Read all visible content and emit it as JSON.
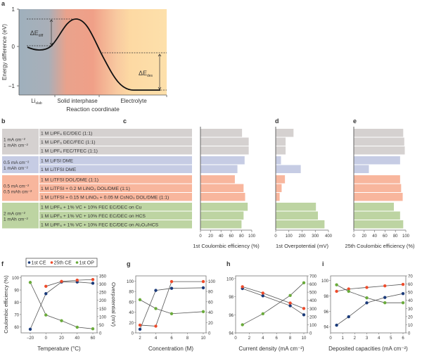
{
  "panel_labels": {
    "a": "a",
    "b": "b",
    "c": "c",
    "d": "d",
    "e": "e",
    "f": "f",
    "g": "g",
    "h": "h",
    "i": "i"
  },
  "colors": {
    "gray": "#d5d1d0",
    "blue": "#c6cce4",
    "orange": "#f8b69d",
    "green": "#bdd4a2",
    "ce1": "#1b3b7a",
    "ce25": "#ee4b2b",
    "op": "#6aab3b"
  },
  "chart_data": [
    {
      "id": "a",
      "type": "line",
      "ylabel": "Energy difference (eV)",
      "xlabel": "Reaction coordinate",
      "yticks": [
        "1",
        "0",
        "−1"
      ],
      "regions": [
        "Li",
        "Solid interphase",
        "Electrolyte"
      ],
      "region_sub": "slab",
      "annotations": [
        {
          "main": "ΔE",
          "sub": "diff"
        },
        {
          "main": "ΔE",
          "sub": "des"
        }
      ]
    },
    {
      "id": "b",
      "type": "table",
      "groups": [
        {
          "cond": [
            "1 mA cm⁻²",
            "1 mAh cm⁻²"
          ],
          "color": "gray",
          "rows": [
            "1 M LiPF₆ EC/DEC (1:1)",
            "1 M LiPF₆ DEC/FEC (1:1)",
            "1 M LiPF₆ FEC/TFEC (1:1)"
          ]
        },
        {
          "cond": [
            "0.5 mA cm⁻²",
            "1 mAh cm⁻²"
          ],
          "color": "blue",
          "rows": [
            "1 M LiFSI DME",
            "1 M LiTFSI DME"
          ]
        },
        {
          "cond": [
            "0.5 mA cm⁻²",
            "0.5 mAh cm⁻²"
          ],
          "color": "orange",
          "rows": [
            "1 M LiTFSI DOL/DME (1:1)",
            "1 M LiTFSI + 0.2 M LiNO₃ DOL/DME (1:1)",
            "1 M LiTFSI + 0.15 M LiNO₃ + 0.05 M CsNO₃ DOL/DME (1:1)"
          ]
        },
        {
          "cond": [
            "2 mA cm⁻²",
            "1 mAh cm⁻²"
          ],
          "color": "green",
          "rows": [
            "1 M LiPF₆ + 1% VC + 10% FEC EC/DEC on Cu",
            "1 M LiPF₆ + 1% VC + 10% FEC EC/DEC on HCS",
            "1 M LiPF₆ + 1% VC + 10% FEC EC/DEC on Al₂O₃/HCS"
          ]
        }
      ]
    },
    {
      "id": "c",
      "type": "bar",
      "xlabel": "1st Coulombic efficiency (%)",
      "xlim": [
        0,
        100
      ],
      "ticks": [
        0,
        20,
        40,
        60,
        80,
        100
      ],
      "values": [
        81,
        94,
        94,
        86,
        72,
        67,
        84,
        87,
        92,
        84,
        80
      ]
    },
    {
      "id": "d",
      "type": "bar",
      "xlabel": "1st Overpotential (mV)",
      "xlim": [
        0,
        400
      ],
      "ticks": [
        0,
        100,
        200,
        300,
        400
      ],
      "values": [
        135,
        75,
        75,
        40,
        190,
        70,
        45,
        30,
        305,
        320,
        370
      ]
    },
    {
      "id": "e",
      "type": "bar",
      "xlabel": "25th Coulombic efficiency (%)",
      "xlim": [
        0,
        100
      ],
      "ticks": [
        0,
        20,
        40,
        60,
        80,
        100
      ],
      "values": [
        95,
        97,
        98,
        89,
        29,
        89,
        91,
        94,
        77,
        89,
        95
      ]
    },
    {
      "id": "f",
      "type": "line",
      "xlabel": "Temperature (°C)",
      "ylabel": "Coulombic efficiency (%)",
      "y2label": "Overpotential (mV)",
      "x": [
        -20,
        0,
        20,
        40,
        60
      ],
      "xticks": [
        -20,
        0,
        20,
        40,
        60
      ],
      "ylim": [
        55,
        101.5
      ],
      "yticks": [
        60,
        70,
        80,
        90,
        100
      ],
      "y2lim": [
        0,
        350
      ],
      "y2ticks": [
        0,
        50,
        100,
        150,
        200,
        250,
        300,
        350
      ],
      "series": [
        {
          "name": "1st CE",
          "axis": "left",
          "color": "ce1",
          "values": [
            58,
            87,
            96.5,
            96.5,
            95.5
          ]
        },
        {
          "name": "25th CE",
          "axis": "left",
          "color": "ce25",
          "values": [
            null,
            93,
            97,
            98,
            98.5
          ]
        },
        {
          "name": "1st OP",
          "axis": "right",
          "color": "op",
          "values": [
            310,
            110,
            75,
            35,
            25
          ]
        }
      ]
    },
    {
      "id": "g",
      "type": "line",
      "xlabel": "Concentration (M)",
      "x": [
        2,
        4,
        6,
        10
      ],
      "xticks": [
        2,
        4,
        6,
        8,
        10
      ],
      "ylim": [
        0,
        110
      ],
      "yticks": [
        0,
        20,
        40,
        60,
        80,
        100
      ],
      "y2lim": [
        0,
        110
      ],
      "y2ticks": [
        0,
        20,
        40,
        60,
        80,
        100
      ],
      "series": [
        {
          "name": "1st CE",
          "axis": "left",
          "color": "ce1",
          "values": [
            7,
            82,
            86,
            87
          ]
        },
        {
          "name": "25th CE",
          "axis": "left",
          "color": "ce25",
          "values": [
            15,
            13,
            99,
            99
          ]
        },
        {
          "name": "1st OP",
          "axis": "right",
          "color": "op",
          "values": [
            64,
            47,
            37,
            41
          ]
        }
      ]
    },
    {
      "id": "h",
      "type": "line",
      "xlabel": "Current density (mA cm⁻²)",
      "x": [
        1,
        4,
        8,
        10
      ],
      "xticks": [
        0,
        2,
        4,
        6,
        8,
        10
      ],
      "ylim": [
        94,
        100.3
      ],
      "yticks": [
        94,
        96,
        98,
        100
      ],
      "y2lim": [
        0,
        700
      ],
      "y2ticks": [
        0,
        100,
        200,
        300,
        400,
        500,
        600,
        700
      ],
      "series": [
        {
          "name": "1st CE",
          "axis": "left",
          "color": "ce1",
          "values": [
            98.9,
            98.1,
            97,
            96
          ]
        },
        {
          "name": "25th CE",
          "axis": "left",
          "color": "ce25",
          "values": [
            99.1,
            98.4,
            97.3,
            96.7
          ]
        },
        {
          "name": "1st OP",
          "axis": "right",
          "color": "op",
          "values": [
            100,
            235,
            460,
            615
          ]
        }
      ]
    },
    {
      "id": "i",
      "type": "line",
      "xlabel": "Deposited capacities (mA cm⁻²)",
      "x": [
        0.5,
        1.5,
        3,
        4.5,
        6
      ],
      "xticks": [
        0,
        1,
        2,
        3,
        4,
        5,
        6
      ],
      "ylim": [
        93.2,
        100.6
      ],
      "yticks": [
        94,
        96,
        98,
        100
      ],
      "y2lim": [
        0,
        70
      ],
      "y2ticks": [
        0,
        10,
        20,
        30,
        40,
        50,
        60,
        70
      ],
      "series": [
        {
          "name": "1st CE",
          "axis": "left",
          "color": "ce1",
          "values": [
            94.2,
            95.3,
            97.1,
            97.8,
            98.3
          ]
        },
        {
          "name": "25th CE",
          "axis": "left",
          "color": "ce25",
          "values": [
            98.6,
            98.9,
            99.1,
            99.3,
            99.5
          ]
        },
        {
          "name": "1st OP",
          "axis": "right",
          "color": "op",
          "values": [
            59,
            51,
            43,
            37,
            37
          ]
        }
      ]
    }
  ],
  "legend": [
    "1st CE",
    "25th CE",
    "1st OP"
  ]
}
